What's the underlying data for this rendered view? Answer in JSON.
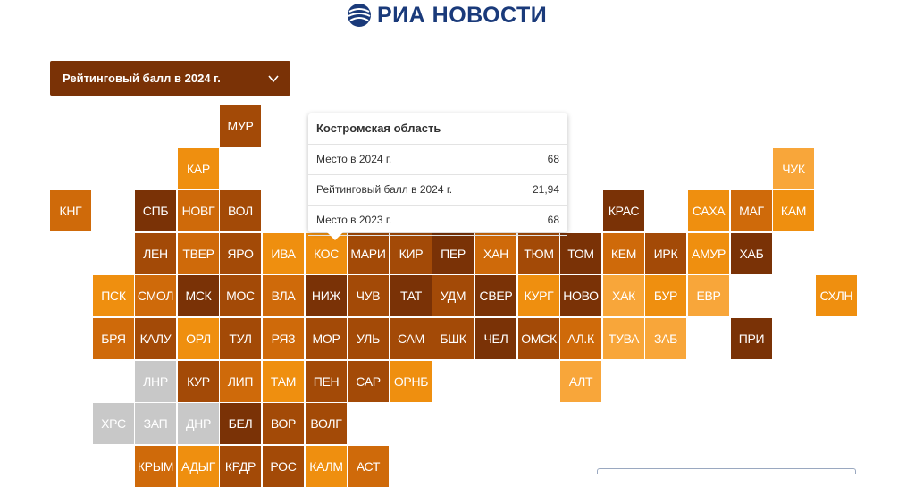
{
  "header": {
    "logo_text": "РИА НОВОСТИ"
  },
  "dropdown": {
    "label": "Рейтинговый балл в 2024 г."
  },
  "tooltip": {
    "title": "Костромская область",
    "rows": [
      {
        "label": "Место в 2024 г.",
        "value": "68"
      },
      {
        "label": "Рейтинговый балл в 2024 г.",
        "value": "21,94"
      },
      {
        "label": "Место в 2023 г.",
        "value": "68"
      }
    ]
  },
  "colors": {
    "dark": "#7a3206",
    "medium_dark": "#a34a07",
    "medium": "#cf6a0a",
    "orange": "#ef8f0f",
    "light": "#f8a63a",
    "gray": "#c8c8c8"
  },
  "tiles": [
    {
      "label": "МУР",
      "tone": "medium_dark"
    },
    {
      "label": "КАР",
      "tone": "orange"
    },
    {
      "label": "ЧУК",
      "tone": "light"
    },
    {
      "label": "КНГ",
      "tone": "medium"
    },
    {
      "label": "СПБ",
      "tone": "dark"
    },
    {
      "label": "НОВГ",
      "tone": "medium"
    },
    {
      "label": "ВОЛ",
      "tone": "medium_dark"
    },
    {
      "label": "КРАС",
      "tone": "dark"
    },
    {
      "label": "САХА",
      "tone": "orange"
    },
    {
      "label": "МАГ",
      "tone": "medium"
    },
    {
      "label": "КАМ",
      "tone": "orange"
    },
    {
      "label": "ЛЕН",
      "tone": "medium_dark"
    },
    {
      "label": "ТВЕР",
      "tone": "medium"
    },
    {
      "label": "ЯРО",
      "tone": "medium_dark"
    },
    {
      "label": "ИВА",
      "tone": "orange"
    },
    {
      "label": "КОС",
      "tone": "orange"
    },
    {
      "label": "МАРИ",
      "tone": "medium_dark"
    },
    {
      "label": "КИР",
      "tone": "medium_dark"
    },
    {
      "label": "ПЕР",
      "tone": "dark"
    },
    {
      "label": "ХАН",
      "tone": "medium"
    },
    {
      "label": "ТЮМ",
      "tone": "medium_dark"
    },
    {
      "label": "ТОМ",
      "tone": "dark"
    },
    {
      "label": "КЕМ",
      "tone": "medium"
    },
    {
      "label": "ИРК",
      "tone": "medium_dark"
    },
    {
      "label": "АМУР",
      "tone": "orange"
    },
    {
      "label": "ХАБ",
      "tone": "dark"
    },
    {
      "label": "ПСК",
      "tone": "orange"
    },
    {
      "label": "СМОЛ",
      "tone": "medium"
    },
    {
      "label": "МСК",
      "tone": "dark"
    },
    {
      "label": "МОС",
      "tone": "medium_dark"
    },
    {
      "label": "ВЛА",
      "tone": "medium"
    },
    {
      "label": "НИЖ",
      "tone": "dark"
    },
    {
      "label": "ЧУВ",
      "tone": "medium_dark"
    },
    {
      "label": "ТАТ",
      "tone": "dark"
    },
    {
      "label": "УДМ",
      "tone": "medium_dark"
    },
    {
      "label": "СВЕР",
      "tone": "dark"
    },
    {
      "label": "КУРГ",
      "tone": "orange"
    },
    {
      "label": "НОВО",
      "tone": "dark"
    },
    {
      "label": "ХАК",
      "tone": "light"
    },
    {
      "label": "БУР",
      "tone": "orange"
    },
    {
      "label": "ЕВР",
      "tone": "light"
    },
    {
      "label": "СХЛН",
      "tone": "orange"
    },
    {
      "label": "БРЯ",
      "tone": "medium"
    },
    {
      "label": "КАЛУ",
      "tone": "medium_dark"
    },
    {
      "label": "ОРЛ",
      "tone": "orange"
    },
    {
      "label": "ТУЛ",
      "tone": "medium_dark"
    },
    {
      "label": "РЯЗ",
      "tone": "medium"
    },
    {
      "label": "МОР",
      "tone": "medium_dark"
    },
    {
      "label": "УЛЬ",
      "tone": "medium_dark"
    },
    {
      "label": "САМ",
      "tone": "medium_dark"
    },
    {
      "label": "БШК",
      "tone": "medium_dark"
    },
    {
      "label": "ЧЕЛ",
      "tone": "dark"
    },
    {
      "label": "ОМСК",
      "tone": "medium_dark"
    },
    {
      "label": "АЛ.К",
      "tone": "medium"
    },
    {
      "label": "ТУВА",
      "tone": "light"
    },
    {
      "label": "ЗАБ",
      "tone": "light"
    },
    {
      "label": "ПРИ",
      "tone": "dark"
    },
    {
      "label": "ЛНР",
      "tone": "gray"
    },
    {
      "label": "КУР",
      "tone": "medium_dark"
    },
    {
      "label": "ЛИП",
      "tone": "medium"
    },
    {
      "label": "ТАМ",
      "tone": "orange"
    },
    {
      "label": "ПЕН",
      "tone": "medium_dark"
    },
    {
      "label": "САР",
      "tone": "medium_dark"
    },
    {
      "label": "ОРНБ",
      "tone": "orange"
    },
    {
      "label": "АЛТ",
      "tone": "light"
    },
    {
      "label": "ХРС",
      "tone": "gray"
    },
    {
      "label": "ЗАП",
      "tone": "gray"
    },
    {
      "label": "ДНР",
      "tone": "gray"
    },
    {
      "label": "БЕЛ",
      "tone": "dark"
    },
    {
      "label": "ВОР",
      "tone": "medium_dark"
    },
    {
      "label": "ВОЛГ",
      "tone": "medium_dark"
    },
    {
      "label": "КРЫМ",
      "tone": "medium"
    },
    {
      "label": "АДЫГ",
      "tone": "orange"
    },
    {
      "label": "КРДР",
      "tone": "medium_dark"
    },
    {
      "label": "РОС",
      "tone": "medium_dark"
    },
    {
      "label": "КАЛМ",
      "tone": "orange"
    },
    {
      "label": "АСТ",
      "tone": "medium"
    }
  ]
}
